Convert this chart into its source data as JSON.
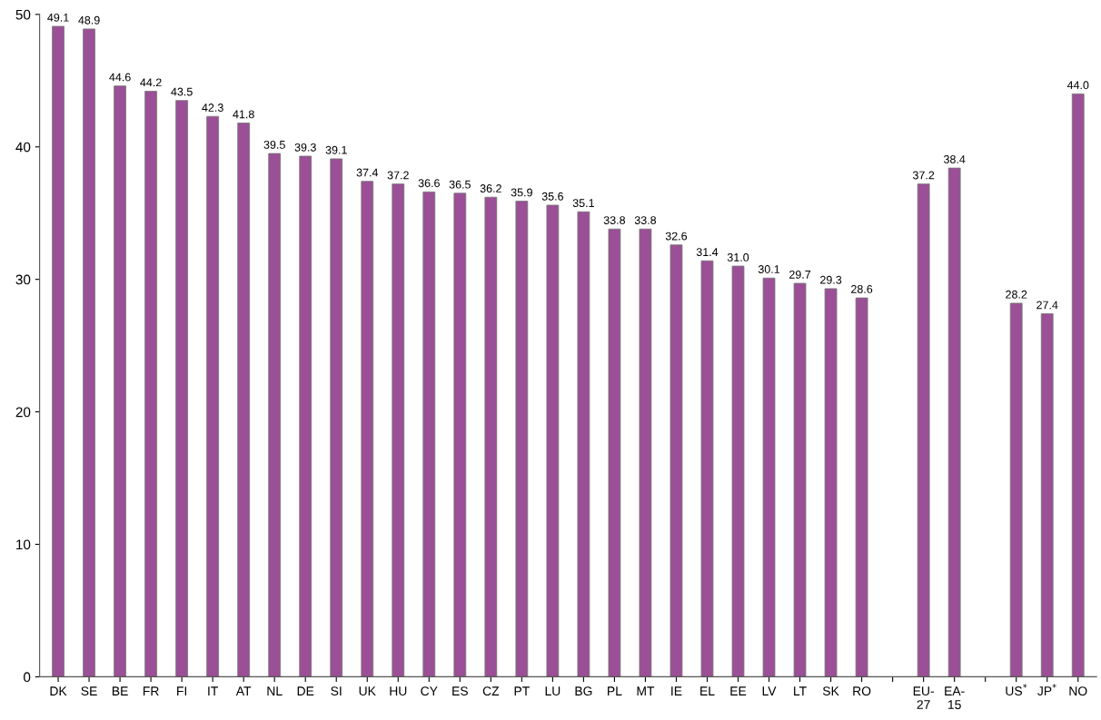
{
  "chart_data": {
    "type": "bar",
    "categories": [
      "DK",
      "SE",
      "BE",
      "FR",
      "FI",
      "IT",
      "AT",
      "NL",
      "DE",
      "SI",
      "UK",
      "HU",
      "CY",
      "ES",
      "CZ",
      "PT",
      "LU",
      "BG",
      "PL",
      "MT",
      "IE",
      "EL",
      "EE",
      "LV",
      "LT",
      "SK",
      "RO",
      null,
      "EU-27",
      "EA-15",
      null,
      "US$^{*}$",
      "JP$^{*}$",
      "NO"
    ],
    "values": [
      49.1,
      48.9,
      44.6,
      44.2,
      43.5,
      42.3,
      41.8,
      39.5,
      39.3,
      39.1,
      37.4,
      37.2,
      36.6,
      36.5,
      36.2,
      35.9,
      35.6,
      35.1,
      33.8,
      33.8,
      32.6,
      31.4,
      31.0,
      30.1,
      29.7,
      29.3,
      28.6,
      null,
      37.2,
      38.4,
      null,
      28.2,
      27.4,
      44.0
    ],
    "value_labels": [
      "49.1",
      "48.9",
      "44.6",
      "44.2",
      "43.5",
      "42.3",
      "41.8",
      "39.5",
      "39.3",
      "39.1",
      "37.4",
      "37.2",
      "36.6",
      "36.5",
      "36.2",
      "35.9",
      "35.6",
      "35.1",
      "33.8",
      "33.8",
      "32.6",
      "31.4",
      "31.0",
      "30.1",
      "29.7",
      "29.3",
      "28.6",
      null,
      "37.2",
      "38.4",
      null,
      "28.2",
      "27.4",
      "44.0"
    ],
    "color": "#9b4f96",
    "ylim": [
      0,
      50
    ],
    "yticks": [
      0,
      10,
      20,
      30,
      40,
      50
    ],
    "grid": false,
    "legend": false
  }
}
